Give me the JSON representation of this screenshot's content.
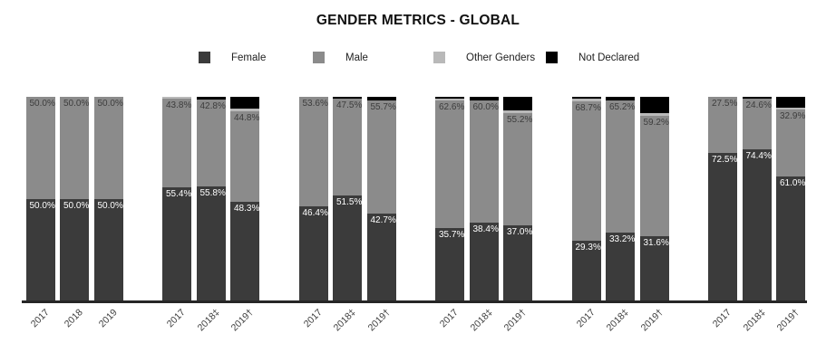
{
  "title": "GENDER METRICS - GLOBAL",
  "colors": {
    "female": "#3b3b3b",
    "male": "#8b8b8b",
    "other_genders": "#b9b9b9",
    "not_declared": "#000000",
    "axis": "#262626",
    "value_label_on_dark": "#ffffff",
    "value_label_on_gray": "#3d3d3d",
    "tick_label": "#3c3c3c"
  },
  "legend": {
    "items": [
      {
        "key": "female",
        "label": "Female",
        "swatch": "#3b3b3b"
      },
      {
        "key": "male",
        "label": "Male",
        "swatch": "#8b8b8b"
      },
      {
        "key": "other_genders",
        "label": "Other Genders",
        "swatch": "#b9b9b9"
      },
      {
        "key": "not_declared",
        "label": "Not Declared",
        "swatch": "#000000"
      }
    ]
  },
  "chart_data": {
    "type": "bar",
    "stacked": true,
    "title": "GENDER METRICS - GLOBAL",
    "value_unit": "%",
    "ylim": [
      0,
      100
    ],
    "series_names": [
      "Female",
      "Male",
      "Other Genders",
      "Not Declared"
    ],
    "labels_shown_for": [
      "female",
      "male"
    ],
    "groups": [
      {
        "bars": [
          {
            "x": "2017",
            "female": 50.0,
            "male": 50.0,
            "other_genders": 0,
            "not_declared": 0
          },
          {
            "x": "2018",
            "female": 50.0,
            "male": 50.0,
            "other_genders": 0,
            "not_declared": 0
          },
          {
            "x": "2019",
            "female": 50.0,
            "male": 50.0,
            "other_genders": 0,
            "not_declared": 0
          }
        ]
      },
      {
        "bars": [
          {
            "x": "2017",
            "female": 55.4,
            "male": 43.8,
            "other_genders": 0.8,
            "not_declared": 0
          },
          {
            "x": "2018‡",
            "female": 55.8,
            "male": 42.8,
            "other_genders": 0,
            "not_declared": 1.4
          },
          {
            "x": "2019†",
            "female": 48.3,
            "male": 44.8,
            "other_genders": 1.0,
            "not_declared": 5.9
          }
        ]
      },
      {
        "bars": [
          {
            "x": "2017",
            "female": 46.4,
            "male": 53.6,
            "other_genders": 0,
            "not_declared": 0
          },
          {
            "x": "2018‡",
            "female": 51.5,
            "male": 47.5,
            "other_genders": 0,
            "not_declared": 1.0
          },
          {
            "x": "2019†",
            "female": 42.7,
            "male": 55.7,
            "other_genders": 0,
            "not_declared": 1.6
          }
        ]
      },
      {
        "bars": [
          {
            "x": "2017",
            "female": 35.7,
            "male": 62.6,
            "other_genders": 0.9,
            "not_declared": 0.8
          },
          {
            "x": "2018‡",
            "female": 38.4,
            "male": 60.0,
            "other_genders": 0,
            "not_declared": 1.6
          },
          {
            "x": "2019†",
            "female": 37.0,
            "male": 55.2,
            "other_genders": 1.3,
            "not_declared": 6.5
          }
        ]
      },
      {
        "bars": [
          {
            "x": "2017",
            "female": 29.3,
            "male": 68.7,
            "other_genders": 1.0,
            "not_declared": 1.0
          },
          {
            "x": "2018‡",
            "female": 33.2,
            "male": 65.2,
            "other_genders": 0,
            "not_declared": 1.6
          },
          {
            "x": "2019†",
            "female": 31.6,
            "male": 59.2,
            "other_genders": 1.3,
            "not_declared": 7.9
          }
        ]
      },
      {
        "bars": [
          {
            "x": "2017",
            "female": 72.5,
            "male": 27.5,
            "other_genders": 0,
            "not_declared": 0
          },
          {
            "x": "2018‡",
            "female": 74.4,
            "male": 24.6,
            "other_genders": 0,
            "not_declared": 1.0
          },
          {
            "x": "2019†",
            "female": 61.0,
            "male": 32.9,
            "other_genders": 0.6,
            "not_declared": 5.5
          }
        ]
      }
    ]
  }
}
